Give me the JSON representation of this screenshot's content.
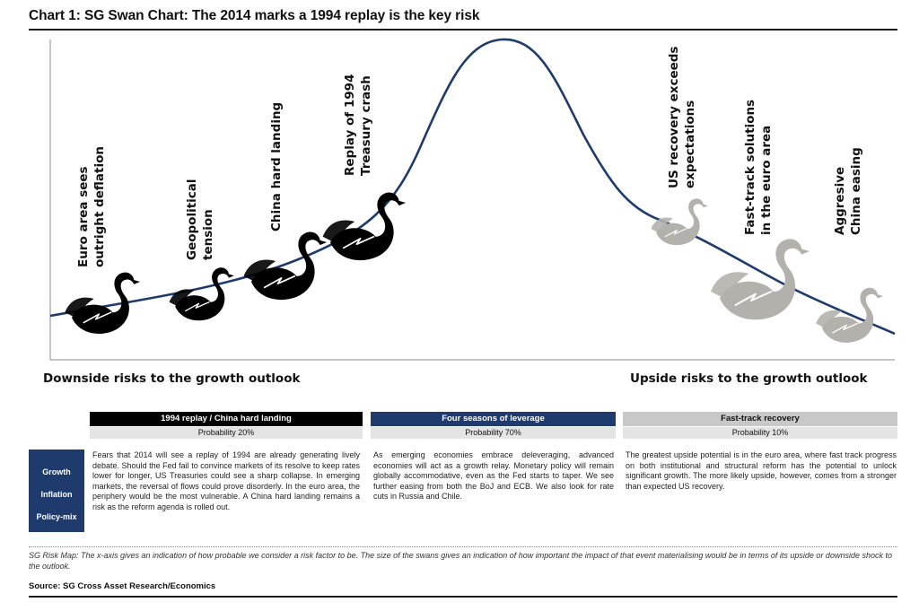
{
  "title": "Chart 1: SG Swan Chart: The 2014 marks a 1994 replay is the key risk",
  "colors": {
    "downside_swan": "#000000",
    "upside_swan": "#b3b1ab",
    "curve": "#1f3b6e",
    "probability_header_blue": "#1f3b6e",
    "header_grey": "#c8c8c8"
  },
  "chart_data": {
    "type": "diagram",
    "title": "SG Swan Chart",
    "xlabel_left": "Downside risks to the growth outlook",
    "xlabel_right": "Upside risks to the growth outlook",
    "curve": "bell-shaped probability curve, peak at central scenario",
    "swans": [
      {
        "label": "Euro area sees outright deflation",
        "side": "downside",
        "color": "black"
      },
      {
        "label": "Geopolitical tension",
        "side": "downside",
        "color": "black"
      },
      {
        "label": "China hard landing",
        "side": "downside",
        "color": "black"
      },
      {
        "label": "Replay of 1994 Treasury crash",
        "side": "downside",
        "color": "black"
      },
      {
        "label": "US recovery exceeds expectations",
        "side": "upside",
        "color": "grey"
      },
      {
        "label": "Fast-track solutions in the euro area",
        "side": "upside",
        "color": "grey"
      },
      {
        "label": "Aggresive China easing",
        "side": "upside",
        "color": "grey"
      }
    ]
  },
  "swan_labels": {
    "s1": [
      "Euro area sees",
      "outright deflation"
    ],
    "s2": [
      "Geopolitical",
      "tension"
    ],
    "s3": [
      "China hard landing"
    ],
    "s4": [
      "Replay of 1994",
      "Treasury crash"
    ],
    "s5": [
      "US recovery exceeds",
      "expectations"
    ],
    "s6": [
      "Fast-track solutions",
      "in the euro area"
    ],
    "s7": [
      "Aggresive",
      "China easing"
    ]
  },
  "axis": {
    "downside": "Downside risks to the growth outlook",
    "upside": "Upside risks to the growth outlook"
  },
  "factors": [
    "Growth",
    "Inflation",
    "Policy-mix"
  ],
  "scenarios": [
    {
      "name": "1994 replay / China hard landing",
      "probability": "Probability 20%",
      "text": "Fears that 2014 will see a replay of 1994 are already generating lively debate. Should the Fed fail to convince markets of its resolve to keep rates lower for longer, US Treasuries could see a sharp collapse. In emerging markets, the reversal of flows could prove disorderly. In the euro area, the periphery would be the most vulnerable. A China hard landing remains a risk as the reform agenda is rolled out."
    },
    {
      "name": "Four seasons of leverage",
      "probability": "Probability 70%",
      "text": "As emerging economies embrace deleveraging, advanced economies will act as a growth relay. Monetary policy will remain globally accommodative, even as the Fed starts to taper. We see further easing from both the BoJ and ECB. We also look for rate cuts in Russia and Chile."
    },
    {
      "name": "Fast-track recovery",
      "probability": "Probability 10%",
      "text": "The greatest upside potential is in the euro area, where fast track progress on both institutional and structural reform has the potential to unlock significant growth. The more likely upside, however, comes from a stronger than expected US recovery."
    }
  ],
  "note": "SG Risk Map: The x-axis gives an indication of how probable we consider a risk factor to be. The size of the swans gives an indication of how important the impact of that event materialising would be in terms of its upside or downside shock to the outlook.",
  "source": "Source: SG Cross Asset Research/Economics"
}
